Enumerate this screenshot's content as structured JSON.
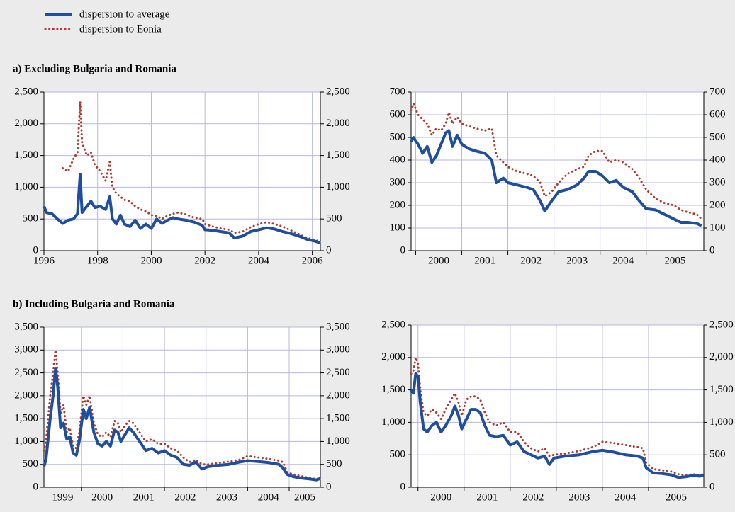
{
  "chart_data": [
    {
      "type": "line",
      "title": "a) Excluding Bulgaria and Romania",
      "x": [
        1996.0,
        1996.1,
        1996.3,
        1996.5,
        1996.7,
        1996.9,
        1997.1,
        1997.25,
        1997.35,
        1997.42,
        1997.6,
        1997.75,
        1997.9,
        1998.1,
        1998.3,
        1998.45,
        1998.55,
        1998.7,
        1998.85,
        1999.0,
        1999.2,
        1999.4,
        1999.6,
        1999.8,
        2000.0,
        2000.2,
        2000.4,
        2000.6,
        2000.8,
        2001.0,
        2001.3,
        2001.6,
        2001.9,
        2002.0,
        2002.3,
        2002.6,
        2002.9,
        2003.1,
        2003.4,
        2003.7,
        2004.0,
        2004.3,
        2004.6,
        2004.9,
        2005.2,
        2005.5,
        2005.8,
        2006.1,
        2006.3
      ],
      "series": [
        {
          "name": "dispersion to average",
          "color": "#1f4e9e",
          "style": "solid",
          "values": [
            700,
            600,
            580,
            500,
            430,
            480,
            500,
            580,
            1200,
            600,
            700,
            780,
            680,
            700,
            650,
            850,
            500,
            420,
            560,
            420,
            380,
            480,
            350,
            420,
            350,
            500,
            430,
            480,
            520,
            500,
            480,
            450,
            400,
            330,
            320,
            300,
            280,
            200,
            230,
            300,
            330,
            360,
            340,
            300,
            270,
            230,
            180,
            150,
            120
          ]
        },
        {
          "name": "dispersion to Eonia",
          "color": "#b03a2e",
          "style": "dotted",
          "values": [
            null,
            null,
            null,
            null,
            1300,
            1250,
            1450,
            1550,
            2350,
            1700,
            1500,
            1550,
            1350,
            1250,
            1100,
            1400,
            1000,
            900,
            850,
            800,
            780,
            700,
            650,
            620,
            560,
            550,
            500,
            550,
            580,
            600,
            570,
            520,
            500,
            420,
            380,
            350,
            330,
            280,
            300,
            370,
            420,
            450,
            420,
            380,
            320,
            260,
            200,
            170,
            140
          ]
        }
      ],
      "xlim": [
        1996,
        2006.3
      ],
      "xticks": [
        1996,
        1998,
        2000,
        2002,
        2004,
        2006
      ],
      "xtick_labels": "at",
      "ylim": [
        0,
        2500
      ],
      "yticks": [
        0,
        500,
        {
          "value": 1000,
          "label": "1,000"
        },
        {
          "value": 1500,
          "label": "1,500"
        },
        {
          "value": 2000,
          "label": "2,000"
        },
        {
          "value": 2500,
          "label": "2,500"
        }
      ],
      "y2lim": [
        0,
        2500
      ],
      "y2ticks": [
        0,
        500,
        {
          "value": 1000,
          "label": "1,000"
        },
        {
          "value": 1500,
          "label": "1,500"
        },
        {
          "value": 2000,
          "label": "2,000"
        },
        {
          "value": 2500,
          "label": "2,500"
        }
      ],
      "grid": true
    },
    {
      "type": "line",
      "x": [
        1999.9,
        1999.95,
        2000.05,
        2000.15,
        2000.25,
        2000.35,
        2000.45,
        2000.55,
        2000.65,
        2000.72,
        2000.8,
        2000.9,
        2001.0,
        2001.15,
        2001.3,
        2001.5,
        2001.65,
        2001.75,
        2001.9,
        2002.0,
        2002.2,
        2002.4,
        2002.55,
        2002.7,
        2002.8,
        2002.95,
        2003.1,
        2003.3,
        2003.5,
        2003.65,
        2003.75,
        2003.9,
        2004.05,
        2004.2,
        2004.35,
        2004.5,
        2004.7,
        2004.85,
        2005.0,
        2005.2,
        2005.4,
        2005.6,
        2005.75,
        2005.9,
        2006.1,
        2006.2
      ],
      "series": [
        {
          "color": "#1f4e9e",
          "style": "solid",
          "values": [
            480,
            500,
            470,
            430,
            460,
            390,
            420,
            470,
            520,
            530,
            460,
            510,
            470,
            450,
            440,
            430,
            400,
            300,
            320,
            300,
            290,
            280,
            270,
            220,
            175,
            220,
            260,
            270,
            290,
            320,
            350,
            350,
            330,
            300,
            310,
            280,
            260,
            220,
            185,
            180,
            160,
            140,
            125,
            125,
            120,
            110
          ]
        },
        {
          "color": "#b03a2e",
          "style": "dotted",
          "values": [
            620,
            650,
            600,
            580,
            560,
            510,
            540,
            530,
            560,
            610,
            560,
            590,
            560,
            550,
            540,
            530,
            540,
            420,
            390,
            370,
            350,
            340,
            330,
            300,
            240,
            260,
            300,
            340,
            360,
            370,
            420,
            440,
            440,
            390,
            400,
            390,
            360,
            320,
            270,
            230,
            210,
            200,
            180,
            170,
            160,
            140
          ]
        }
      ],
      "xlim": [
        1999.9,
        2006.25
      ],
      "xticks": [
        2000,
        2001,
        2002,
        2003,
        2004,
        2005
      ],
      "xtick_labels": "between",
      "ylim": [
        0,
        700
      ],
      "yticks": [
        0,
        100,
        200,
        300,
        400,
        500,
        600,
        700
      ],
      "y2lim": [
        0,
        700
      ],
      "y2ticks": [
        0,
        100,
        200,
        300,
        400,
        500,
        600,
        700
      ],
      "grid": true
    },
    {
      "type": "line",
      "title": "b) Including Bulgaria and Romania",
      "x": [
        1999.1,
        1999.15,
        1999.25,
        1999.32,
        1999.38,
        1999.43,
        1999.5,
        1999.57,
        1999.65,
        1999.72,
        1999.8,
        1999.88,
        1999.95,
        2000.05,
        2000.12,
        2000.2,
        2000.3,
        2000.4,
        2000.5,
        2000.6,
        2000.7,
        2000.8,
        2000.88,
        2000.95,
        2001.05,
        2001.15,
        2001.25,
        2001.4,
        2001.55,
        2001.7,
        2001.85,
        2002.0,
        2002.15,
        2002.3,
        2002.45,
        2002.6,
        2002.75,
        2002.9,
        2003.05,
        2003.3,
        2003.55,
        2003.8,
        2004.0,
        2004.25,
        2004.5,
        2004.75,
        2004.85,
        2004.95,
        2005.1,
        2005.3,
        2005.5,
        2005.65,
        2005.75
      ],
      "series": [
        {
          "color": "#1f4e9e",
          "style": "solid",
          "values": [
            450,
            600,
            1500,
            2000,
            2600,
            2200,
            1300,
            1400,
            1050,
            1100,
            750,
            700,
            1000,
            1700,
            1500,
            1750,
            1200,
            950,
            900,
            1000,
            900,
            1250,
            1200,
            1000,
            1150,
            1300,
            1200,
            1000,
            800,
            850,
            750,
            800,
            700,
            650,
            500,
            480,
            550,
            400,
            450,
            480,
            500,
            550,
            580,
            560,
            540,
            500,
            420,
            280,
            230,
            200,
            180,
            160,
            190
          ]
        },
        {
          "color": "#b03a2e",
          "style": "dotted",
          "values": [
            800,
            1000,
            2000,
            2500,
            3000,
            2500,
            1600,
            1800,
            1200,
            1300,
            900,
            850,
            1200,
            2000,
            1800,
            2000,
            1400,
            1150,
            1100,
            1200,
            1100,
            1450,
            1400,
            1200,
            1350,
            1450,
            1400,
            1200,
            1000,
            1050,
            950,
            950,
            850,
            800,
            650,
            550,
            600,
            500,
            500,
            530,
            560,
            600,
            680,
            650,
            620,
            580,
            550,
            330,
            280,
            240,
            200,
            180,
            200
          ]
        }
      ],
      "xlim": [
        1999.1,
        2005.75
      ],
      "xticks": [
        2000,
        2001,
        2002,
        2003,
        2004,
        2005
      ],
      "xtick_first_label": 1999,
      "xtick_labels": "between",
      "ylim": [
        0,
        3500
      ],
      "yticks": [
        0,
        500,
        {
          "value": 1000,
          "label": "1,000"
        },
        {
          "value": 1500,
          "label": "1,500"
        },
        {
          "value": 2000,
          "label": "2,000"
        },
        {
          "value": 2500,
          "label": "2,500"
        },
        {
          "value": 3000,
          "label": "3,000"
        },
        {
          "value": 3500,
          "label": "3,500"
        }
      ],
      "y2lim": [
        0,
        3500
      ],
      "y2ticks": [
        0,
        500,
        {
          "value": 1000,
          "label": "1,000"
        },
        {
          "value": 1500,
          "label": "1,500"
        },
        {
          "value": 2000,
          "label": "2,000"
        },
        {
          "value": 2500,
          "label": "2,500"
        },
        {
          "value": 3000,
          "label": "3,000"
        },
        {
          "value": 3500,
          "label": "3,500"
        }
      ],
      "grid": true
    },
    {
      "type": "line",
      "x": [
        1999.85,
        1999.9,
        1999.95,
        2000.0,
        2000.05,
        2000.12,
        2000.2,
        2000.3,
        2000.4,
        2000.5,
        2000.6,
        2000.72,
        2000.8,
        2000.88,
        2000.95,
        2001.05,
        2001.15,
        2001.25,
        2001.35,
        2001.45,
        2001.55,
        2001.7,
        2001.85,
        2002.0,
        2002.15,
        2002.3,
        2002.45,
        2002.6,
        2002.75,
        2002.85,
        2002.95,
        2003.2,
        2003.5,
        2003.8,
        2004.0,
        2004.25,
        2004.5,
        2004.75,
        2004.88,
        2004.95,
        2005.1,
        2005.3,
        2005.5,
        2005.65,
        2005.8,
        2005.95,
        2006.1,
        2006.2
      ],
      "series": [
        {
          "color": "#1f4e9e",
          "style": "solid",
          "values": [
            1500,
            1450,
            1750,
            1700,
            1300,
            900,
            850,
            950,
            1000,
            850,
            950,
            1100,
            1250,
            1100,
            900,
            1050,
            1200,
            1200,
            1150,
            950,
            800,
            780,
            800,
            650,
            700,
            550,
            500,
            450,
            480,
            350,
            450,
            480,
            500,
            550,
            570,
            540,
            500,
            480,
            450,
            300,
            220,
            210,
            190,
            150,
            160,
            180,
            170,
            180
          ]
        },
        {
          "color": "#b03a2e",
          "style": "dotted",
          "values": [
            1750,
            1800,
            2000,
            1900,
            1500,
            1150,
            1100,
            1200,
            1150,
            1050,
            1200,
            1350,
            1450,
            1300,
            1100,
            1350,
            1400,
            1400,
            1350,
            1150,
            1000,
            950,
            1000,
            850,
            850,
            700,
            600,
            550,
            600,
            480,
            500,
            520,
            560,
            620,
            700,
            680,
            650,
            620,
            600,
            380,
            280,
            260,
            240,
            200,
            180,
            200,
            190,
            200
          ]
        }
      ],
      "xlim": [
        1999.85,
        2006.2
      ],
      "xticks": [
        2000,
        2001,
        2002,
        2003,
        2004,
        2005
      ],
      "xtick_labels": "between",
      "ylim": [
        0,
        2500
      ],
      "yticks": [
        0,
        500,
        {
          "value": 1000,
          "label": "1,000"
        },
        {
          "value": 1500,
          "label": "1,500"
        },
        {
          "value": 2000,
          "label": "2,000"
        },
        {
          "value": 2500,
          "label": "2,500"
        }
      ],
      "y2lim": [
        0,
        2500
      ],
      "y2ticks": [
        0,
        500,
        {
          "value": 1000,
          "label": "1,000"
        },
        {
          "value": 1500,
          "label": "1,500"
        },
        {
          "value": 2000,
          "label": "2,000"
        },
        {
          "value": 2500,
          "label": "2,500"
        }
      ],
      "grid": true
    }
  ]
}
